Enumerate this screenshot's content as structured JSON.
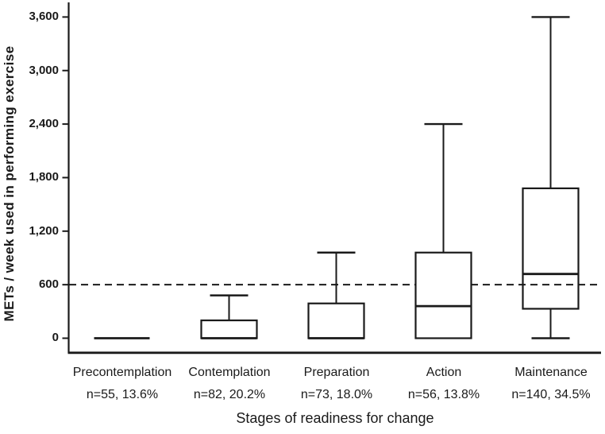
{
  "chart_data": {
    "type": "box",
    "title": "",
    "ylabel": "METs / week used in performing exercise",
    "xlabel": "Stages of readiness for change",
    "ylim": [
      0,
      3600
    ],
    "yticks": [
      0,
      600,
      1200,
      1800,
      2400,
      3000,
      3600
    ],
    "ytick_labels": [
      "0",
      "600",
      "1,200",
      "1,800",
      "2,400",
      "3,000",
      "3,600"
    ],
    "reference_line": {
      "value": 600,
      "style": "dashed"
    },
    "grid": false,
    "legend": null,
    "categories": [
      "Precontemplation",
      "Contemplation",
      "Preparation",
      "Action",
      "Maintenance"
    ],
    "n_labels": [
      "n=55, 13.6%",
      "n=82, 20.2%",
      "n=73, 18.0%",
      "n=56, 13.8%",
      "n=140, 34.5%"
    ],
    "boxes": [
      {
        "category": "Precontemplation",
        "n": 55,
        "percent": 13.6,
        "whisker_low": 0,
        "q1": 0,
        "median": 0,
        "q3": 0,
        "whisker_high": 0
      },
      {
        "category": "Contemplation",
        "n": 82,
        "percent": 20.2,
        "whisker_low": 0,
        "q1": 0,
        "median": 0,
        "q3": 200,
        "whisker_high": 480
      },
      {
        "category": "Preparation",
        "n": 73,
        "percent": 18.0,
        "whisker_low": 0,
        "q1": 0,
        "median": 0,
        "q3": 390,
        "whisker_high": 960
      },
      {
        "category": "Action",
        "n": 56,
        "percent": 13.8,
        "whisker_low": 0,
        "q1": 0,
        "median": 360,
        "q3": 960,
        "whisker_high": 2400
      },
      {
        "category": "Maintenance",
        "n": 140,
        "percent": 34.5,
        "whisker_low": 0,
        "q1": 330,
        "median": 720,
        "q3": 1680,
        "whisker_high": 3600
      }
    ],
    "colors": {
      "line": "#1a1a1a",
      "background": "#ffffff"
    }
  }
}
